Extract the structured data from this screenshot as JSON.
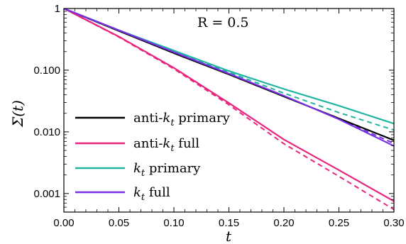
{
  "chart_data": {
    "type": "line",
    "title": "",
    "xlabel": "t",
    "ylabel": "Σ(t)",
    "xlim": [
      0,
      0.3
    ],
    "ylim": [
      0.0005,
      1
    ],
    "yscale": "log",
    "grid": false,
    "legend_position": "bottom-left",
    "x_ticks": [
      0.0,
      0.05,
      0.1,
      0.15,
      0.2,
      0.25,
      0.3
    ],
    "x_tick_labels": [
      "0.00",
      "0.05",
      "0.10",
      "0.15",
      "0.20",
      "0.25",
      "0.30"
    ],
    "y_ticks": [
      1,
      0.1,
      0.01,
      0.001
    ],
    "y_tick_labels": [
      "1",
      "0.100",
      "0.010",
      "0.001"
    ],
    "annotation": "R = 0.5",
    "x": [
      0.0,
      0.05,
      0.1,
      0.15,
      0.2,
      0.25,
      0.3
    ],
    "series": [
      {
        "name": "anti-k_t primary",
        "legend_parts": [
          "anti-",
          "k",
          "t",
          " primary"
        ],
        "color": "#000000",
        "solid": [
          1.0,
          0.433,
          0.189,
          0.0855,
          0.0375,
          0.0165,
          0.0073
        ],
        "dashed": [
          1.0,
          0.433,
          0.189,
          0.0855,
          0.0375,
          0.0165,
          0.0073
        ]
      },
      {
        "name": "anti-k_t full",
        "legend_parts": [
          "anti-",
          "k",
          "t",
          " full"
        ],
        "color": "#e8247c",
        "solid": [
          1.0,
          0.35,
          0.109,
          0.0294,
          0.0075,
          0.0024,
          0.00075
        ],
        "dashed": [
          1.0,
          0.345,
          0.105,
          0.0275,
          0.0064,
          0.0019,
          0.00055
        ]
      },
      {
        "name": "k_t primary",
        "legend_parts": [
          "",
          "k",
          "t",
          " primary"
        ],
        "color": "#1fb5a0",
        "solid": [
          1.0,
          0.445,
          0.208,
          0.097,
          0.0495,
          0.0265,
          0.0136
        ],
        "dashed": [
          1.0,
          0.44,
          0.198,
          0.0925,
          0.0425,
          0.0205,
          0.0107
        ]
      },
      {
        "name": "k_t full",
        "legend_parts": [
          "",
          "k",
          "t",
          " full"
        ],
        "color": "#7a2ee6",
        "solid": [
          1.0,
          0.443,
          0.196,
          0.088,
          0.0385,
          0.016,
          0.0059
        ],
        "dashed": [
          1.0,
          0.44,
          0.194,
          0.087,
          0.038,
          0.0162,
          0.0065
        ]
      }
    ]
  }
}
